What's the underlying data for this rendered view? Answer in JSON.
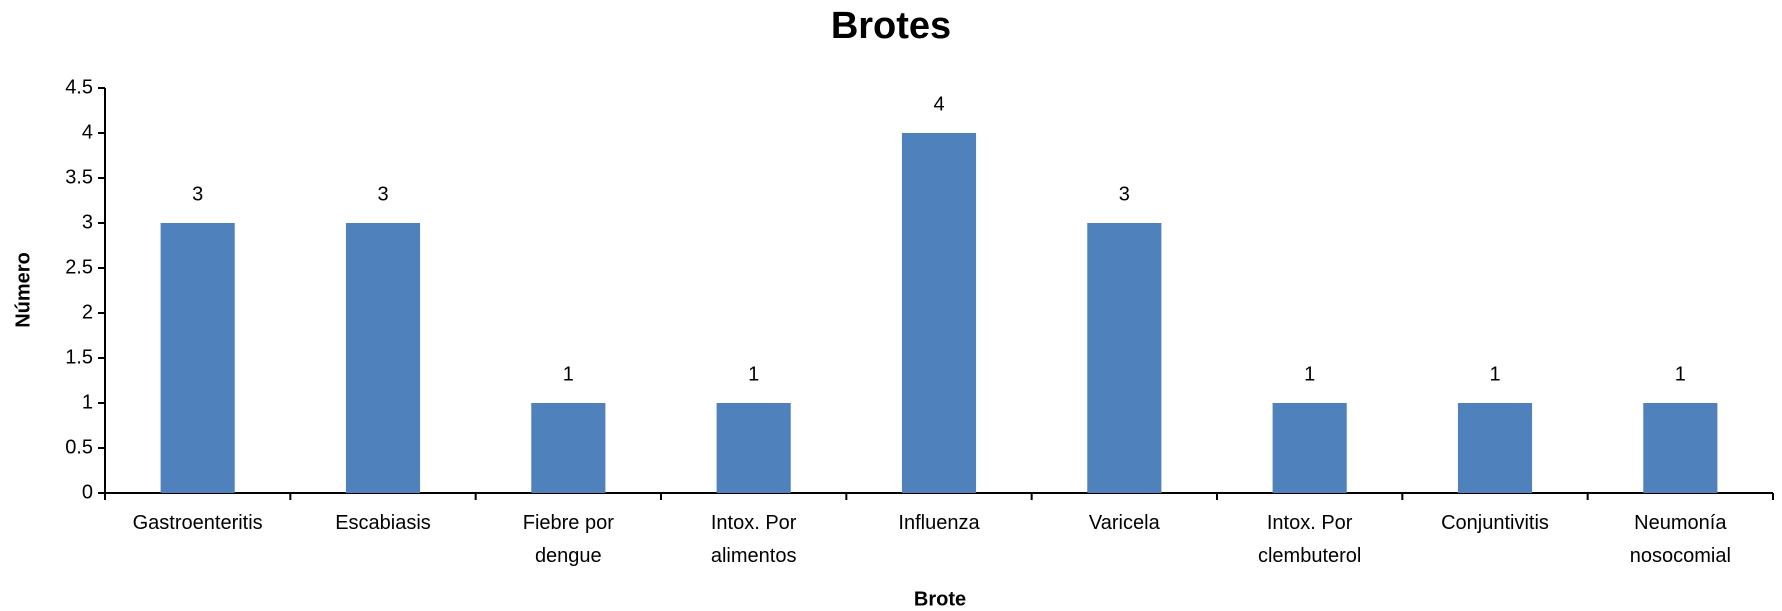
{
  "chart_data": {
    "type": "bar",
    "title": "Brotes",
    "x_label": "Brote",
    "y_label": "Número",
    "categories": [
      "Gastroenteritis",
      "Escabiasis",
      "Fiebre por\ndengue",
      "Intox. Por\nalimentos",
      "Influenza",
      "Varicela",
      "Intox. Por\nclembuterol",
      "Conjuntivitis",
      "Neumonía\nnosocomial"
    ],
    "values": [
      3,
      3,
      1,
      1,
      4,
      3,
      1,
      1,
      1
    ],
    "color": "#4f81bd",
    "ylim": [
      0,
      4.5
    ],
    "yticks": [
      0,
      0.5,
      1,
      1.5,
      2,
      2.5,
      3,
      3.5,
      4,
      4.5
    ],
    "grid": false
  }
}
